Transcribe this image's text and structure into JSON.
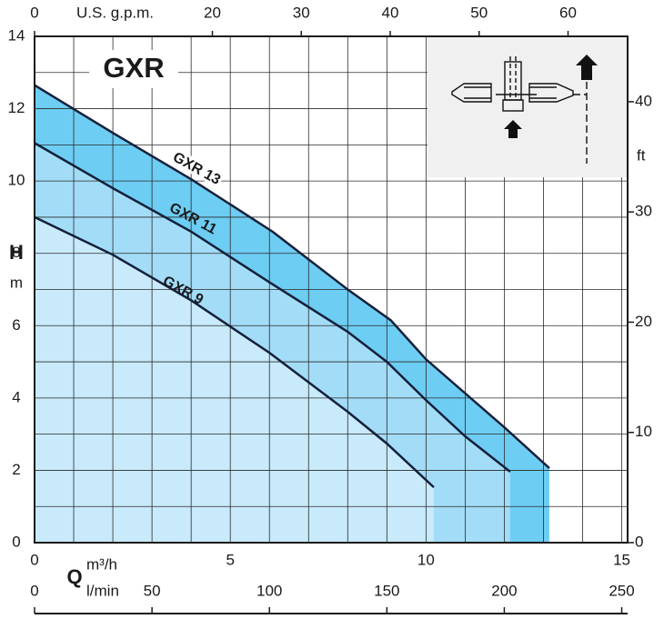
{
  "chart_data": {
    "type": "line",
    "title": "GXR",
    "y_label": "H",
    "y_unit": "m",
    "x_label": "Q",
    "x_unit": "m³/h",
    "x2_unit": "l/min",
    "x3_unit": "U.S. g.p.m.",
    "y2_unit": "ft",
    "xlim": [
      0,
      15.15
    ],
    "xticks": [
      0,
      5,
      10,
      15
    ],
    "xgrid": [
      0,
      1,
      2,
      3,
      4,
      5,
      6,
      7,
      8,
      9,
      10,
      11,
      12,
      13,
      14,
      15
    ],
    "ylim": [
      0,
      14
    ],
    "yticks": [
      0,
      2,
      4,
      6,
      8,
      10,
      12,
      14
    ],
    "ygrid": [
      0,
      1,
      2,
      3,
      4,
      5,
      6,
      7,
      8,
      9,
      10,
      11,
      12,
      13,
      14
    ],
    "y2lim": [
      0,
      45.93
    ],
    "y2ticks": [
      0,
      10,
      20,
      30,
      40
    ],
    "x2lim": [
      0,
      252.5
    ],
    "x2ticks": [
      0,
      50,
      100,
      150,
      200,
      250
    ],
    "x3lim": [
      0,
      66.7
    ],
    "x3ticks": [
      0,
      20,
      30,
      40,
      50,
      60
    ],
    "grid": true,
    "series": [
      {
        "name": "GXR 13",
        "color": "#14203a",
        "fill": "#6dcdf3",
        "x": [
          0,
          2,
          4,
          6.08,
          8,
          9.1,
          10,
          12,
          13.15
        ],
        "values": [
          12.65,
          11.33,
          10.05,
          8.6,
          7.0,
          6.15,
          5.07,
          3.19,
          2.06
        ]
      },
      {
        "name": "GXR 11",
        "color": "#14203a",
        "fill": "#a3dcf7",
        "x": [
          0,
          2,
          4,
          6,
          8,
          9,
          10,
          11,
          12.15
        ],
        "values": [
          11.05,
          9.8,
          8.6,
          7.2,
          5.83,
          5.0,
          3.94,
          2.94,
          1.96
        ]
      },
      {
        "name": "GXR 9",
        "color": "#14203a",
        "fill": "#c8eafb",
        "x": [
          0,
          2,
          4,
          6,
          8,
          9,
          10.2
        ],
        "values": [
          9.0,
          7.96,
          6.7,
          5.25,
          3.62,
          2.74,
          1.53
        ]
      }
    ]
  }
}
